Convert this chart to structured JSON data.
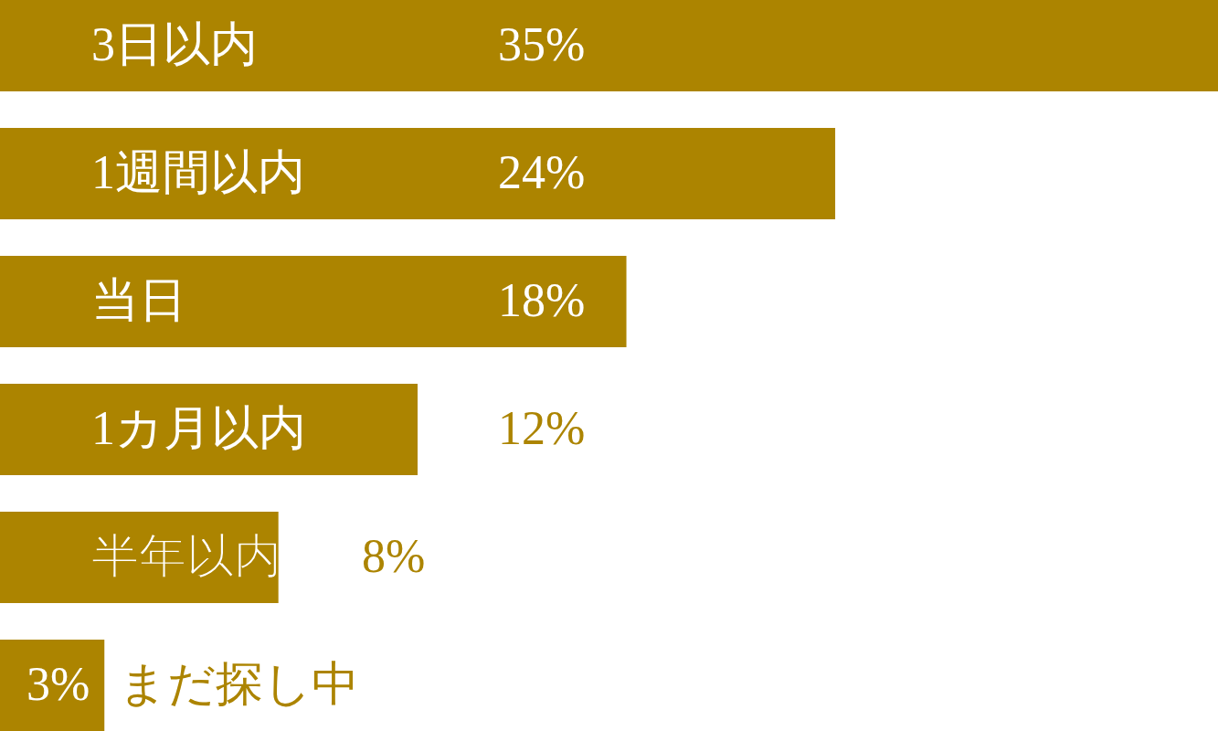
{
  "chart_data": {
    "type": "bar",
    "orientation": "horizontal",
    "categories": [
      "3日以内",
      "1週間以内",
      "当日",
      "1カ月以内",
      "半年以内",
      "まだ探し中"
    ],
    "values": [
      35,
      24,
      18,
      12,
      8,
      3
    ],
    "value_labels": [
      "35%",
      "24%",
      "18%",
      "12%",
      "8%",
      "3%"
    ],
    "color": "#ac8400",
    "xlim": [
      0,
      35
    ]
  }
}
